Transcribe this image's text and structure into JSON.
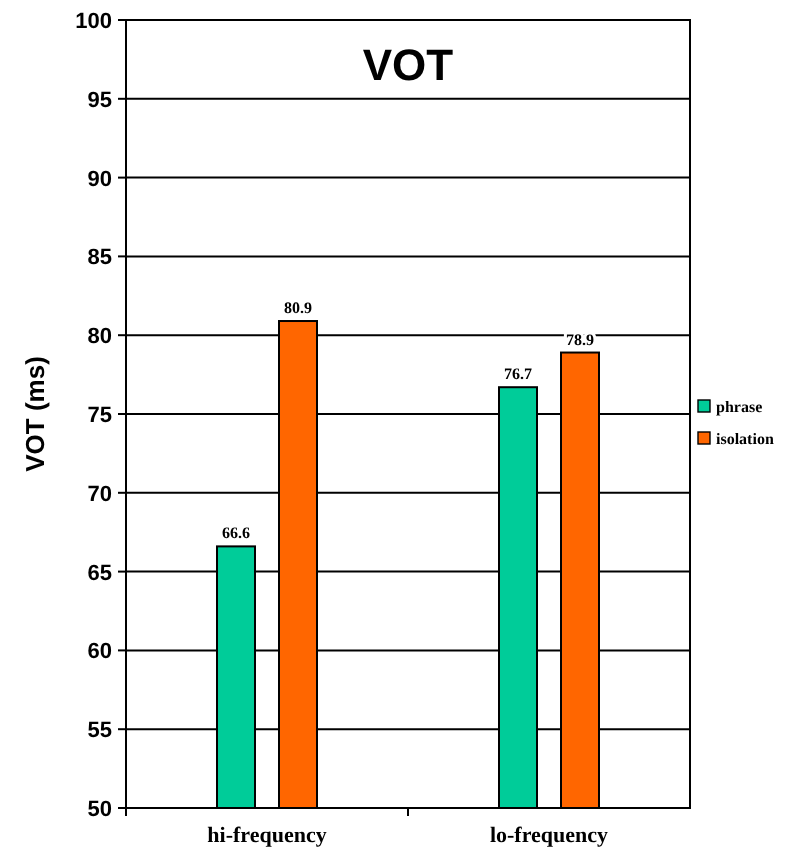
{
  "chart_data": {
    "type": "bar",
    "title": "VOT",
    "ylabel": "VOT (ms)",
    "categories": [
      "hi-frequency",
      "lo-frequency"
    ],
    "series": [
      {
        "name": "phrase",
        "color": "#00cc99",
        "values": [
          66.6,
          76.7
        ]
      },
      {
        "name": "isolation",
        "color": "#ff6600",
        "values": [
          80.9,
          78.9
        ]
      }
    ],
    "ylim": [
      50,
      100
    ],
    "yticks": [
      50,
      55,
      60,
      65,
      70,
      75,
      80,
      85,
      90,
      95,
      100
    ],
    "grid": "y",
    "legend": "right",
    "data_labels": true
  }
}
